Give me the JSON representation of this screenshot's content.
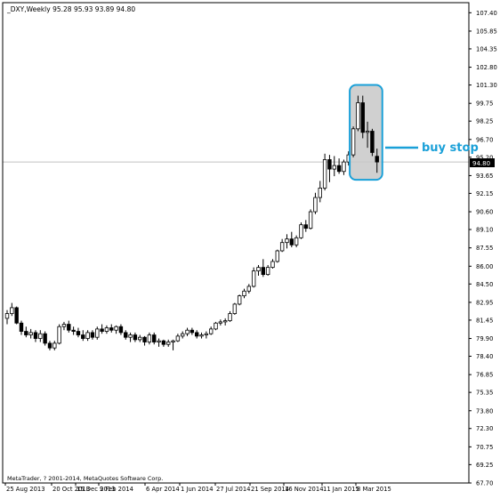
{
  "header": {
    "symbol_info": "_DXY,Weekly  95.28 95.93 93.89 94.80"
  },
  "footer": {
    "copyright": "MetaTrader, ? 2001-2014, MetaQuotes Software Corp."
  },
  "annotation": {
    "label": "buy stop",
    "color": "#1aa0d8"
  },
  "current_price": {
    "label": "94.80"
  },
  "colors": {
    "bull_body": "#ffffff",
    "bear_body": "#000000",
    "wick": "#000000",
    "axis": "#000000",
    "price_line": "#c0c0c0",
    "highlight_fill": "#c8c8c8"
  },
  "chart_data": {
    "type": "candlestick",
    "title": "_DXY,Weekly",
    "ylim": [
      67.7,
      108.25
    ],
    "y_ticks": [
      "107.40",
      "105.85",
      "104.35",
      "102.80",
      "101.30",
      "99.75",
      "98.25",
      "96.70",
      "95.20",
      "93.65",
      "92.15",
      "90.60",
      "89.10",
      "87.55",
      "86.00",
      "84.50",
      "82.95",
      "81.45",
      "79.90",
      "78.40",
      "76.85",
      "75.35",
      "73.80",
      "72.30",
      "70.75",
      "69.25",
      "67.70"
    ],
    "x_ticks": [
      "25 Aug 2013",
      "20 Oct 2013",
      "15 Dec 2013",
      "9 Feb 2014",
      "6 Apr 2014",
      "1 Jun 2014",
      "27 Jul 2014",
      "21 Sep 2014",
      "16 Nov 2014",
      "11 Jan 2015",
      "8 Mar 2015"
    ],
    "candles": [
      {
        "o": 81.6,
        "h": 82.3,
        "l": 81.1,
        "c": 82.0
      },
      {
        "o": 82.0,
        "h": 82.9,
        "l": 81.8,
        "c": 82.5
      },
      {
        "o": 82.5,
        "h": 82.6,
        "l": 81.1,
        "c": 81.2
      },
      {
        "o": 81.2,
        "h": 81.4,
        "l": 80.2,
        "c": 80.5
      },
      {
        "o": 80.5,
        "h": 80.9,
        "l": 80.0,
        "c": 80.2
      },
      {
        "o": 80.2,
        "h": 80.7,
        "l": 79.9,
        "c": 80.4
      },
      {
        "o": 80.4,
        "h": 80.6,
        "l": 79.6,
        "c": 79.9
      },
      {
        "o": 79.9,
        "h": 80.6,
        "l": 79.6,
        "c": 80.3
      },
      {
        "o": 80.3,
        "h": 80.5,
        "l": 79.3,
        "c": 79.5
      },
      {
        "o": 79.5,
        "h": 79.7,
        "l": 78.9,
        "c": 79.1
      },
      {
        "o": 79.1,
        "h": 79.7,
        "l": 78.9,
        "c": 79.5
      },
      {
        "o": 79.5,
        "h": 81.1,
        "l": 79.4,
        "c": 80.9
      },
      {
        "o": 80.9,
        "h": 81.3,
        "l": 80.6,
        "c": 81.1
      },
      {
        "o": 81.1,
        "h": 81.4,
        "l": 80.4,
        "c": 80.6
      },
      {
        "o": 80.6,
        "h": 80.9,
        "l": 80.2,
        "c": 80.5
      },
      {
        "o": 80.5,
        "h": 80.8,
        "l": 80.0,
        "c": 80.2
      },
      {
        "o": 80.2,
        "h": 80.6,
        "l": 79.7,
        "c": 79.9
      },
      {
        "o": 79.9,
        "h": 80.6,
        "l": 79.7,
        "c": 80.4
      },
      {
        "o": 80.4,
        "h": 80.6,
        "l": 79.8,
        "c": 80.0
      },
      {
        "o": 80.0,
        "h": 80.9,
        "l": 79.8,
        "c": 80.7
      },
      {
        "o": 80.7,
        "h": 81.1,
        "l": 80.3,
        "c": 80.5
      },
      {
        "o": 80.5,
        "h": 81.0,
        "l": 80.3,
        "c": 80.8
      },
      {
        "o": 80.8,
        "h": 81.1,
        "l": 80.4,
        "c": 80.6
      },
      {
        "o": 80.6,
        "h": 81.0,
        "l": 80.3,
        "c": 80.9
      },
      {
        "o": 80.9,
        "h": 81.1,
        "l": 80.2,
        "c": 80.4
      },
      {
        "o": 80.4,
        "h": 80.6,
        "l": 79.8,
        "c": 80.0
      },
      {
        "o": 80.0,
        "h": 80.4,
        "l": 79.6,
        "c": 80.2
      },
      {
        "o": 80.2,
        "h": 80.4,
        "l": 79.6,
        "c": 79.8
      },
      {
        "o": 79.8,
        "h": 80.2,
        "l": 79.6,
        "c": 80.0
      },
      {
        "o": 80.0,
        "h": 80.1,
        "l": 79.3,
        "c": 79.6
      },
      {
        "o": 79.6,
        "h": 80.4,
        "l": 79.4,
        "c": 80.2
      },
      {
        "o": 80.2,
        "h": 80.4,
        "l": 79.4,
        "c": 79.6
      },
      {
        "o": 79.6,
        "h": 79.9,
        "l": 79.2,
        "c": 79.7
      },
      {
        "o": 79.7,
        "h": 79.8,
        "l": 79.2,
        "c": 79.4
      },
      {
        "o": 79.4,
        "h": 79.8,
        "l": 79.2,
        "c": 79.6
      },
      {
        "o": 79.6,
        "h": 79.8,
        "l": 78.9,
        "c": 79.7
      },
      {
        "o": 79.7,
        "h": 80.3,
        "l": 79.6,
        "c": 80.1
      },
      {
        "o": 80.1,
        "h": 80.5,
        "l": 79.9,
        "c": 80.3
      },
      {
        "o": 80.3,
        "h": 80.8,
        "l": 80.1,
        "c": 80.6
      },
      {
        "o": 80.6,
        "h": 80.8,
        "l": 80.2,
        "c": 80.4
      },
      {
        "o": 80.4,
        "h": 80.6,
        "l": 79.9,
        "c": 80.1
      },
      {
        "o": 80.1,
        "h": 80.4,
        "l": 79.9,
        "c": 80.2
      },
      {
        "o": 80.2,
        "h": 80.5,
        "l": 79.9,
        "c": 80.3
      },
      {
        "o": 80.3,
        "h": 80.9,
        "l": 80.2,
        "c": 80.7
      },
      {
        "o": 80.7,
        "h": 81.3,
        "l": 80.6,
        "c": 81.2
      },
      {
        "o": 81.2,
        "h": 81.5,
        "l": 81.0,
        "c": 81.3
      },
      {
        "o": 81.3,
        "h": 81.6,
        "l": 81.0,
        "c": 81.4
      },
      {
        "o": 81.4,
        "h": 82.2,
        "l": 81.3,
        "c": 82.0
      },
      {
        "o": 82.0,
        "h": 82.9,
        "l": 81.9,
        "c": 82.8
      },
      {
        "o": 82.8,
        "h": 83.6,
        "l": 82.7,
        "c": 83.5
      },
      {
        "o": 83.5,
        "h": 84.1,
        "l": 83.3,
        "c": 83.9
      },
      {
        "o": 83.9,
        "h": 84.5,
        "l": 83.7,
        "c": 84.3
      },
      {
        "o": 84.3,
        "h": 85.9,
        "l": 84.2,
        "c": 85.6
      },
      {
        "o": 85.6,
        "h": 86.1,
        "l": 85.2,
        "c": 85.9
      },
      {
        "o": 85.9,
        "h": 86.6,
        "l": 85.1,
        "c": 85.3
      },
      {
        "o": 85.3,
        "h": 86.1,
        "l": 85.2,
        "c": 85.9
      },
      {
        "o": 85.9,
        "h": 86.6,
        "l": 85.8,
        "c": 86.4
      },
      {
        "o": 86.4,
        "h": 87.4,
        "l": 86.3,
        "c": 87.3
      },
      {
        "o": 87.3,
        "h": 88.3,
        "l": 87.2,
        "c": 88.0
      },
      {
        "o": 88.0,
        "h": 88.7,
        "l": 87.5,
        "c": 88.3
      },
      {
        "o": 88.3,
        "h": 88.9,
        "l": 87.6,
        "c": 87.8
      },
      {
        "o": 87.8,
        "h": 88.6,
        "l": 87.6,
        "c": 88.4
      },
      {
        "o": 88.4,
        "h": 89.7,
        "l": 88.3,
        "c": 89.5
      },
      {
        "o": 89.5,
        "h": 89.9,
        "l": 88.9,
        "c": 89.2
      },
      {
        "o": 89.2,
        "h": 90.8,
        "l": 89.1,
        "c": 90.6
      },
      {
        "o": 90.6,
        "h": 92.2,
        "l": 90.4,
        "c": 91.8
      },
      {
        "o": 91.8,
        "h": 93.2,
        "l": 91.4,
        "c": 92.6
      },
      {
        "o": 92.6,
        "h": 95.5,
        "l": 92.4,
        "c": 95.0
      },
      {
        "o": 95.0,
        "h": 95.4,
        "l": 93.1,
        "c": 94.2
      },
      {
        "o": 94.2,
        "h": 95.3,
        "l": 93.6,
        "c": 94.5
      },
      {
        "o": 94.5,
        "h": 95.1,
        "l": 93.8,
        "c": 94.0
      },
      {
        "o": 94.0,
        "h": 95.0,
        "l": 93.7,
        "c": 94.8
      },
      {
        "o": 94.8,
        "h": 95.7,
        "l": 94.5,
        "c": 95.4
      },
      {
        "o": 95.4,
        "h": 97.8,
        "l": 95.2,
        "c": 97.6
      },
      {
        "o": 97.6,
        "h": 100.4,
        "l": 97.4,
        "c": 99.8
      },
      {
        "o": 99.8,
        "h": 100.4,
        "l": 96.8,
        "c": 97.3
      },
      {
        "o": 97.3,
        "h": 98.2,
        "l": 96.0,
        "c": 97.4
      },
      {
        "o": 97.4,
        "h": 97.6,
        "l": 95.3,
        "c": 95.6
      },
      {
        "o": 95.28,
        "h": 95.93,
        "l": 93.89,
        "c": 94.8
      }
    ]
  }
}
